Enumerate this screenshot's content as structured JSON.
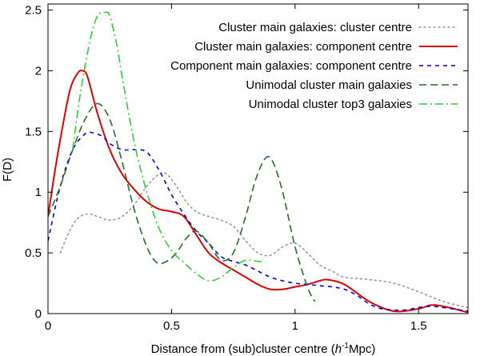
{
  "chart_data": {
    "type": "line",
    "title": "",
    "xlabel": "Distance from (sub)cluster centre  (h⁻¹Mpc)",
    "xlabel_parts": {
      "prefix": "Distance from (sub)cluster centre  (",
      "italic": "h",
      "sup": "-1",
      "suffix": "Mpc)"
    },
    "ylabel": "F(D)",
    "xlim": [
      0,
      1.7
    ],
    "ylim": [
      0,
      2.55
    ],
    "xticks": [
      0,
      0.5,
      1,
      1.5
    ],
    "xtick_labels": [
      "0",
      "0.5",
      "1",
      "1.5"
    ],
    "yticks": [
      0,
      0.5,
      1,
      1.5,
      2,
      2.5
    ],
    "ytick_labels": [
      "0",
      "0.5",
      "1",
      "1.5",
      "2",
      "2.5"
    ],
    "grid": false,
    "legend_position": "top-right",
    "series": [
      {
        "name": "Cluster main galaxies: cluster centre",
        "color": "#999999",
        "dash": "dotted",
        "x": [
          0.05,
          0.08,
          0.11,
          0.14,
          0.17,
          0.2,
          0.25,
          0.3,
          0.35,
          0.4,
          0.45,
          0.48,
          0.52,
          0.56,
          0.6,
          0.65,
          0.7,
          0.75,
          0.8,
          0.85,
          0.9,
          0.95,
          1.0,
          1.05,
          1.1,
          1.15,
          1.2,
          1.3,
          1.4,
          1.5,
          1.6,
          1.7
        ],
        "y": [
          0.5,
          0.65,
          0.76,
          0.81,
          0.82,
          0.8,
          0.77,
          0.8,
          0.9,
          1.05,
          1.15,
          1.15,
          1.05,
          0.92,
          0.84,
          0.8,
          0.77,
          0.72,
          0.6,
          0.5,
          0.48,
          0.55,
          0.58,
          0.5,
          0.4,
          0.35,
          0.3,
          0.28,
          0.25,
          0.18,
          0.1,
          0.05
        ]
      },
      {
        "name": "Cluster main galaxies: component centre",
        "color": "#dd0000",
        "dash": "solid",
        "x": [
          0,
          0.03,
          0.06,
          0.09,
          0.12,
          0.14,
          0.16,
          0.2,
          0.25,
          0.3,
          0.35,
          0.4,
          0.45,
          0.5,
          0.55,
          0.6,
          0.65,
          0.7,
          0.75,
          0.8,
          0.85,
          0.9,
          0.95,
          1.0,
          1.05,
          1.1,
          1.13,
          1.2,
          1.3,
          1.4,
          1.5,
          1.55,
          1.6,
          1.7
        ],
        "y": [
          0.8,
          1.2,
          1.55,
          1.85,
          1.98,
          2.0,
          1.95,
          1.65,
          1.35,
          1.15,
          1.02,
          0.92,
          0.86,
          0.84,
          0.8,
          0.65,
          0.5,
          0.42,
          0.36,
          0.3,
          0.24,
          0.2,
          0.2,
          0.22,
          0.24,
          0.27,
          0.28,
          0.24,
          0.1,
          0.02,
          0.04,
          0.07,
          0.06,
          0.01
        ]
      },
      {
        "name": "Component main galaxies: component centre",
        "color": "#0000cc",
        "dash": "dashed",
        "x": [
          0,
          0.05,
          0.1,
          0.15,
          0.18,
          0.22,
          0.25,
          0.3,
          0.35,
          0.4,
          0.45,
          0.5,
          0.55,
          0.6,
          0.65,
          0.7,
          0.75,
          0.8,
          0.85,
          0.9,
          0.95,
          1.0,
          1.05,
          1.1,
          1.15,
          1.2,
          1.25,
          1.3,
          1.35,
          1.4,
          1.45,
          1.5,
          1.55,
          1.6,
          1.7
        ],
        "y": [
          0.6,
          1.05,
          1.35,
          1.48,
          1.49,
          1.46,
          1.4,
          1.35,
          1.35,
          1.33,
          1.18,
          0.98,
          0.82,
          0.68,
          0.58,
          0.47,
          0.43,
          0.4,
          0.35,
          0.3,
          0.27,
          0.25,
          0.24,
          0.23,
          0.22,
          0.2,
          0.15,
          0.08,
          0.04,
          0.03,
          0.03,
          0.05,
          0.06,
          0.05,
          0.02
        ]
      },
      {
        "name": "Unimodal cluster main galaxies",
        "color": "#2a6a2a",
        "dash": "longdash",
        "x": [
          0,
          0.05,
          0.1,
          0.15,
          0.2,
          0.25,
          0.3,
          0.35,
          0.4,
          0.44,
          0.48,
          0.52,
          0.56,
          0.6,
          0.65,
          0.7,
          0.75,
          0.8,
          0.84,
          0.88,
          0.91,
          0.95,
          1.0,
          1.05,
          1.08
        ],
        "y": [
          0.8,
          1.05,
          1.35,
          1.6,
          1.73,
          1.6,
          1.25,
          0.85,
          0.55,
          0.42,
          0.43,
          0.5,
          0.62,
          0.68,
          0.58,
          0.44,
          0.5,
          0.8,
          1.1,
          1.28,
          1.25,
          1.0,
          0.55,
          0.22,
          0.1
        ]
      },
      {
        "name": "Unimodal cluster top3 galaxies",
        "color": "#33cc33",
        "dash": "dashdot",
        "x": [
          0.1,
          0.13,
          0.17,
          0.2,
          0.23,
          0.25,
          0.28,
          0.3,
          0.35,
          0.4,
          0.45,
          0.5,
          0.55,
          0.6,
          0.65,
          0.7,
          0.75,
          0.8,
          0.85,
          0.88
        ],
        "y": [
          1.35,
          1.8,
          2.25,
          2.45,
          2.48,
          2.45,
          2.2,
          1.95,
          1.4,
          1.0,
          0.7,
          0.52,
          0.42,
          0.33,
          0.27,
          0.3,
          0.38,
          0.44,
          0.43,
          0.42
        ]
      }
    ]
  }
}
